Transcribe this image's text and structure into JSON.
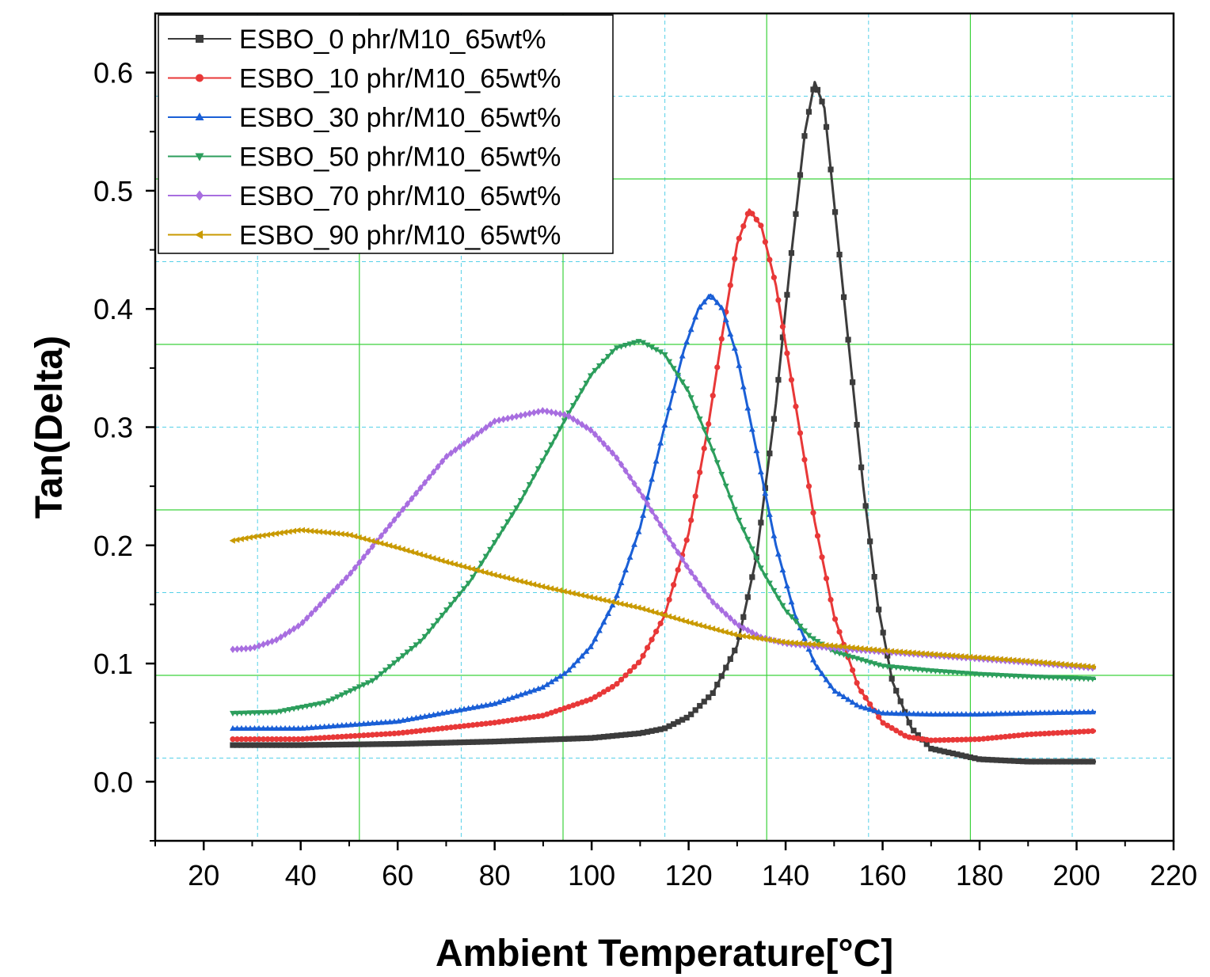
{
  "chart_data": {
    "type": "line",
    "title": "",
    "xlabel": "Ambient Temperature[°C]",
    "ylabel": "Tan(Delta)",
    "xlim": [
      10,
      220
    ],
    "ylim": [
      -0.05,
      0.65
    ],
    "xticks": [
      20,
      40,
      60,
      80,
      100,
      120,
      140,
      160,
      180,
      200,
      220
    ],
    "yticks": [
      0.0,
      0.1,
      0.2,
      0.3,
      0.4,
      0.5,
      0.6
    ],
    "xtick_labels": [
      "20",
      "40",
      "60",
      "80",
      "100",
      "120",
      "140",
      "160",
      "180",
      "200",
      "220"
    ],
    "ytick_labels": [
      "0.0",
      "0.1",
      "0.2",
      "0.3",
      "0.4",
      "0.5",
      "0.6"
    ],
    "grid": "on (green major, cyan dashed minor)",
    "legend_position": "top-left",
    "series": [
      {
        "name": "ESBO_0 phr/M10_65wt%",
        "color": "#3c3c3c",
        "marker": "square",
        "x": [
          26,
          40,
          60,
          80,
          100,
          110,
          115,
          120,
          125,
          130,
          134,
          138,
          141,
          144,
          146,
          148,
          150,
          153,
          156,
          159,
          162,
          166,
          170,
          180,
          190,
          204
        ],
        "y": [
          0.031,
          0.031,
          0.032,
          0.034,
          0.037,
          0.041,
          0.045,
          0.055,
          0.075,
          0.115,
          0.19,
          0.32,
          0.44,
          0.55,
          0.592,
          0.57,
          0.49,
          0.37,
          0.25,
          0.15,
          0.085,
          0.045,
          0.028,
          0.019,
          0.017,
          0.017
        ]
      },
      {
        "name": "ESBO_10 phr/M10_65wt%",
        "color": "#e83838",
        "marker": "circle",
        "x": [
          26,
          40,
          60,
          80,
          90,
          100,
          105,
          110,
          115,
          120,
          124,
          127,
          130,
          132.5,
          135,
          138,
          142,
          146,
          150,
          155,
          160,
          165,
          170,
          180,
          190,
          204
        ],
        "y": [
          0.036,
          0.036,
          0.041,
          0.05,
          0.056,
          0.07,
          0.082,
          0.102,
          0.14,
          0.21,
          0.3,
          0.38,
          0.455,
          0.484,
          0.47,
          0.42,
          0.32,
          0.22,
          0.14,
          0.08,
          0.05,
          0.038,
          0.035,
          0.036,
          0.04,
          0.043
        ]
      },
      {
        "name": "ESBO_30 phr/M10_65wt%",
        "color": "#1a5fd6",
        "marker": "triangle-up",
        "x": [
          26,
          40,
          60,
          80,
          90,
          95,
          100,
          105,
          110,
          115,
          119,
          122,
          124.5,
          127,
          130,
          134,
          138,
          142,
          146,
          150,
          155,
          160,
          170,
          180,
          190,
          204
        ],
        "y": [
          0.045,
          0.045,
          0.051,
          0.066,
          0.08,
          0.093,
          0.115,
          0.155,
          0.215,
          0.3,
          0.365,
          0.4,
          0.412,
          0.4,
          0.36,
          0.28,
          0.2,
          0.14,
          0.1,
          0.077,
          0.064,
          0.058,
          0.057,
          0.057,
          0.058,
          0.059
        ]
      },
      {
        "name": "ESBO_50 phr/M10_65wt%",
        "color": "#2c9e5c",
        "marker": "triangle-down",
        "x": [
          26,
          35,
          45,
          55,
          65,
          75,
          85,
          95,
          100,
          105,
          110,
          115,
          120,
          125,
          130,
          135,
          140,
          145,
          150,
          160,
          170,
          180,
          190,
          204
        ],
        "y": [
          0.058,
          0.059,
          0.067,
          0.086,
          0.12,
          0.17,
          0.235,
          0.31,
          0.345,
          0.367,
          0.373,
          0.362,
          0.33,
          0.28,
          0.225,
          0.18,
          0.145,
          0.123,
          0.11,
          0.098,
          0.094,
          0.091,
          0.089,
          0.087
        ]
      },
      {
        "name": "ESBO_70 phr/M10_65wt%",
        "color": "#a86ee0",
        "marker": "diamond",
        "x": [
          26,
          30,
          35,
          40,
          50,
          60,
          70,
          80,
          90,
          95,
          100,
          105,
          110,
          115,
          120,
          125,
          130,
          135,
          140,
          145,
          150,
          160,
          170,
          180,
          190,
          204
        ],
        "y": [
          0.112,
          0.113,
          0.12,
          0.133,
          0.175,
          0.225,
          0.275,
          0.305,
          0.314,
          0.31,
          0.297,
          0.275,
          0.245,
          0.212,
          0.18,
          0.152,
          0.133,
          0.122,
          0.117,
          0.115,
          0.113,
          0.11,
          0.107,
          0.104,
          0.101,
          0.096
        ]
      },
      {
        "name": "ESBO_90 phr/M10_65wt%",
        "color": "#c99a00",
        "marker": "triangle-left",
        "x": [
          26,
          30,
          40,
          50,
          60,
          70,
          80,
          90,
          100,
          110,
          120,
          130,
          140,
          150,
          160,
          170,
          180,
          190,
          204
        ],
        "y": [
          0.204,
          0.207,
          0.213,
          0.209,
          0.198,
          0.186,
          0.175,
          0.165,
          0.156,
          0.147,
          0.135,
          0.124,
          0.118,
          0.115,
          0.111,
          0.108,
          0.105,
          0.102,
          0.097
        ]
      }
    ]
  }
}
